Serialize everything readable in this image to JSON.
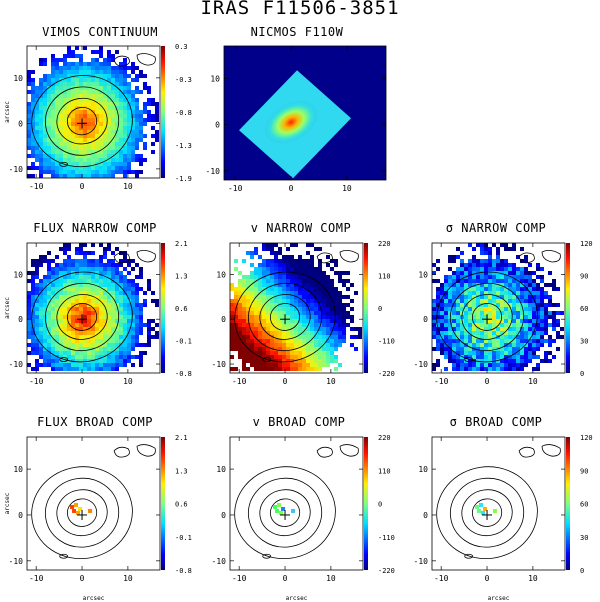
{
  "title": "IRAS F11506-3851",
  "axis_unit": "arcsec",
  "colors": {
    "bg_dark_blue": "#00008b",
    "jet_low": "#00007f",
    "jet_high": "#7f0000"
  },
  "panels": [
    {
      "id": "p0",
      "title": "VIMOS CONTINUUM",
      "cb": [
        "0.3",
        "-0.3",
        "-0.8",
        "-1.3",
        "-1.9"
      ],
      "xt": [
        "-10",
        "0",
        "10"
      ],
      "yt": [
        "10",
        "0",
        "-10"
      ],
      "ylabel": true,
      "xlabel": false
    },
    {
      "id": "p1",
      "title": "NICMOS F110W",
      "cb": [],
      "xt": [
        "-10",
        "0",
        "10"
      ],
      "yt": [
        "10",
        "0",
        "-10"
      ],
      "ylabel": false,
      "xlabel": false
    },
    {
      "id": "p3",
      "title": "FLUX NARROW COMP",
      "cb": [
        "2.1",
        "1.3",
        "0.6",
        "-0.1",
        "-0.8"
      ],
      "xt": [
        "-10",
        "0",
        "10"
      ],
      "yt": [
        "10",
        "0",
        "-10"
      ],
      "ylabel": true,
      "xlabel": false
    },
    {
      "id": "p4",
      "title": "v NARROW COMP",
      "cb": [
        "220",
        "110",
        "0",
        "-110",
        "-220"
      ],
      "xt": [
        "-10",
        "0",
        "10"
      ],
      "yt": [
        "10",
        "0",
        "-10"
      ],
      "ylabel": false,
      "xlabel": false
    },
    {
      "id": "p5",
      "title": "σ NARROW COMP",
      "cb": [
        "120",
        "90",
        "60",
        "30",
        "0"
      ],
      "xt": [
        "-10",
        "0",
        "10"
      ],
      "yt": [
        "10",
        "0",
        "-10"
      ],
      "ylabel": false,
      "xlabel": false
    },
    {
      "id": "p6",
      "title": "FLUX BROAD COMP",
      "cb": [
        "2.1",
        "1.3",
        "0.6",
        "-0.1",
        "-0.8"
      ],
      "xt": [
        "-10",
        "0",
        "10"
      ],
      "yt": [
        "10",
        "0",
        "-10"
      ],
      "ylabel": true,
      "xlabel": true
    },
    {
      "id": "p7",
      "title": "v BROAD COMP",
      "cb": [
        "220",
        "110",
        "0",
        "-110",
        "-220"
      ],
      "xt": [
        "-10",
        "0",
        "10"
      ],
      "yt": [
        "10",
        "0",
        "-10"
      ],
      "ylabel": false,
      "xlabel": true
    },
    {
      "id": "p8",
      "title": "σ BROAD COMP",
      "cb": [
        "120",
        "90",
        "60",
        "30",
        "0"
      ],
      "xt": [
        "-10",
        "0",
        "10"
      ],
      "yt": [
        "10",
        "0",
        "-10"
      ],
      "ylabel": false,
      "xlabel": true
    }
  ]
}
